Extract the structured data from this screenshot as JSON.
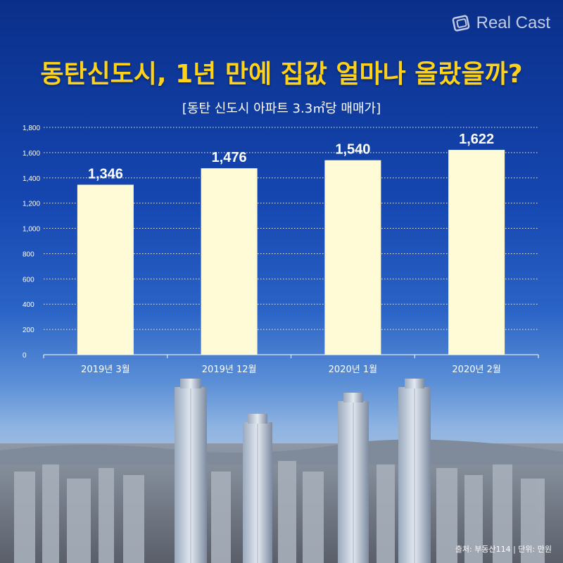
{
  "brand": {
    "logo_text": "Real Cast"
  },
  "title": "동탄신도시, 1년 만에 집값 얼마나 올랐을까?",
  "subtitle": "[동탄 신도시 아파트 3.3㎡당 매매가]",
  "source": "출처: 부동산114 | 단위: 만원",
  "colors": {
    "title": "#ffd21a",
    "bar": "#fffbd6",
    "axis": "#ffffff"
  },
  "chart_data": {
    "type": "bar",
    "categories": [
      "2019년 3월",
      "2019년 12월",
      "2020년 1월",
      "2020년 2월"
    ],
    "values": [
      1346,
      1476,
      1540,
      1622
    ],
    "value_labels": [
      "1,346",
      "1,476",
      "1,540",
      "1,622"
    ],
    "title": "동탄신도시, 1년 만에 집값 얼마나 올랐을까?",
    "subtitle": "[동탄 신도시 아파트 3.3㎡당 매매가]",
    "xlabel": "",
    "ylabel": "",
    "ylim": [
      0,
      1800
    ],
    "yticks": [
      0,
      200,
      400,
      600,
      800,
      1000,
      1200,
      1400,
      1600,
      1800
    ],
    "ytick_labels": [
      "0",
      "200",
      "400",
      "600",
      "800",
      "1,000",
      "1,200",
      "1,400",
      "1,600",
      "1,800"
    ],
    "grid": true,
    "grid_style": "dotted",
    "legend": "none"
  }
}
